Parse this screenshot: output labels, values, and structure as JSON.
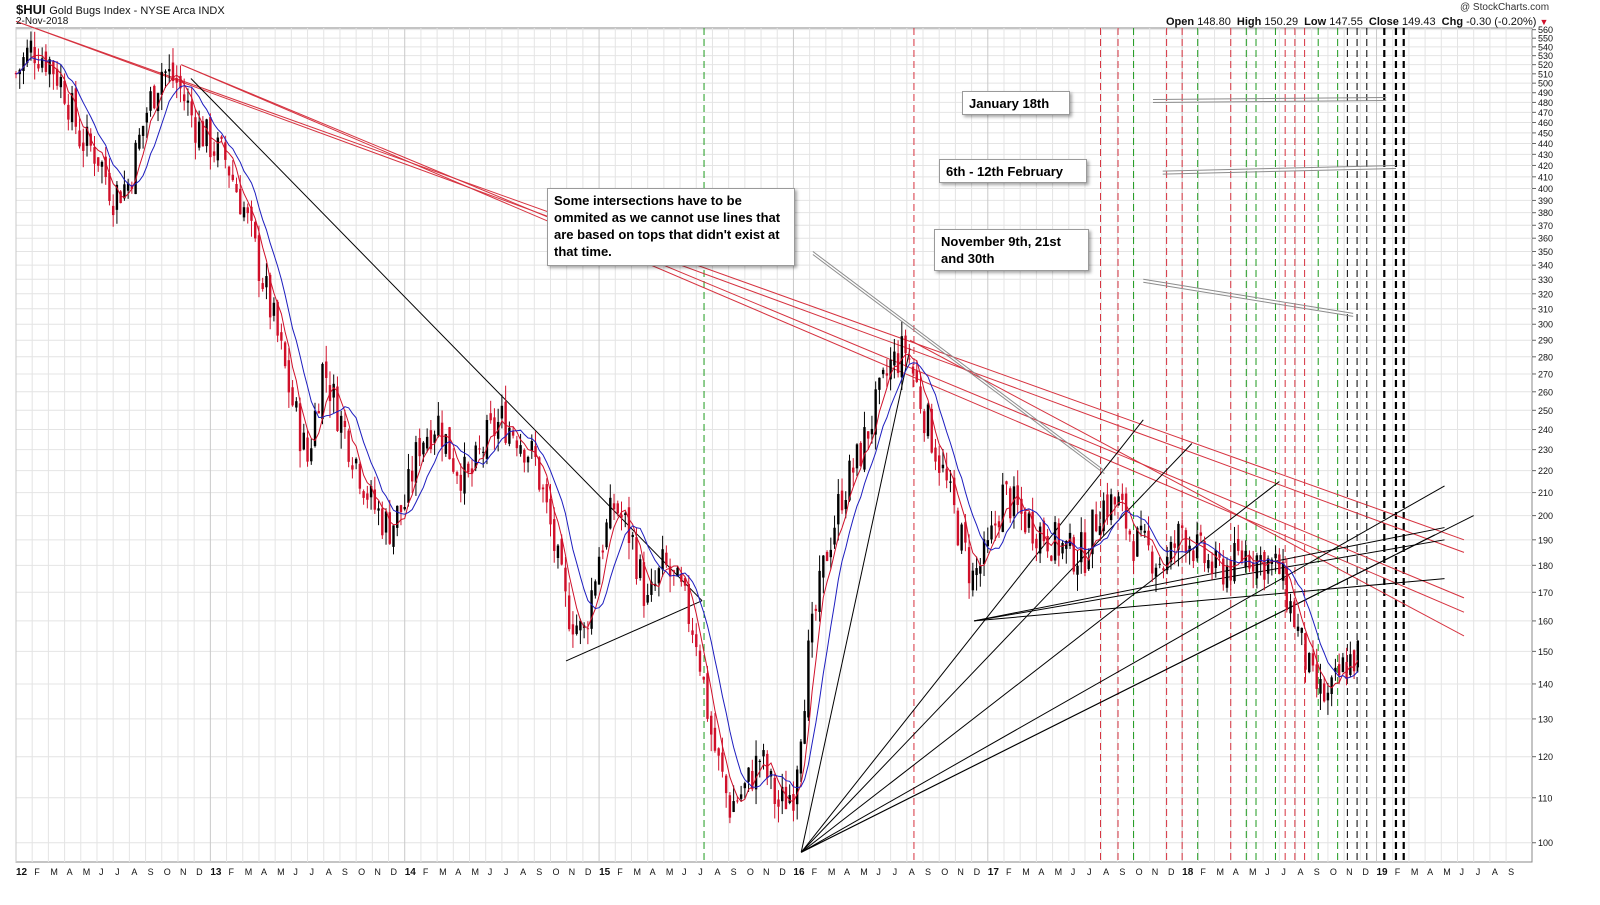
{
  "header": {
    "symbol": "$HUI",
    "description": "Gold Bugs Index - NYSE Arca  INDX",
    "date": "2-Nov-2018",
    "open_label": "Open",
    "open": "148.80",
    "high_label": "High",
    "high": "150.29",
    "low_label": "Low",
    "low": "147.55",
    "close_label": "Close",
    "close": "149.43",
    "chg_label": "Chg",
    "chg": "-0.30 (-0.20%)",
    "chg_marker": "▼",
    "watermark": "@ StockCharts.com"
  },
  "annotations": {
    "note_intersections": "Some intersections have to be ommited as we cannot use lines that are based on tops that didn't exist at that time.",
    "jan18": "January 18th",
    "feb": "6th - 12th February",
    "nov": "November 9th, 21st and 30th"
  },
  "colors": {
    "up_candle": "#000000",
    "down_candle": "#d0102a",
    "ma_fast": "#d0102a",
    "ma_slow": "#1d1dbf",
    "red_trend": "#d6323f",
    "black_trend": "#000000",
    "grid": "#e4e4e4",
    "green_vline": "#1e9a1e",
    "red_vline": "#d6323f"
  },
  "chart_data": {
    "type": "line",
    "subtype": "candlestick with moving averages and trendlines",
    "title": "$HUI Gold Bugs Index - NYSE Arca INDX",
    "scale": "log",
    "ylim": [
      96,
      562
    ],
    "xlim": [
      2012.0,
      2019.8
    ],
    "y_ticks": [
      560,
      550,
      540,
      530,
      520,
      510,
      500,
      490,
      480,
      470,
      460,
      450,
      440,
      430,
      420,
      410,
      400,
      390,
      380,
      370,
      360,
      350,
      340,
      330,
      320,
      310,
      300,
      290,
      280,
      270,
      260,
      250,
      240,
      230,
      220,
      210,
      200,
      190,
      180,
      170,
      160,
      150,
      140,
      130,
      120,
      110,
      100
    ],
    "x_tick_labels": [
      "12",
      "F",
      "M",
      "A",
      "M",
      "J",
      "J",
      "A",
      "S",
      "O",
      "N",
      "D",
      "13",
      "F",
      "M",
      "A",
      "M",
      "J",
      "J",
      "A",
      "S",
      "O",
      "N",
      "D",
      "14",
      "F",
      "M",
      "A",
      "M",
      "J",
      "J",
      "A",
      "S",
      "O",
      "N",
      "D",
      "15",
      "F",
      "M",
      "A",
      "M",
      "J",
      "J",
      "A",
      "S",
      "O",
      "N",
      "D",
      "16",
      "F",
      "M",
      "A",
      "M",
      "J",
      "J",
      "A",
      "S",
      "O",
      "N",
      "D",
      "17",
      "F",
      "M",
      "A",
      "M",
      "J",
      "J",
      "A",
      "S",
      "O",
      "N",
      "D",
      "18",
      "F",
      "M",
      "A",
      "M",
      "J",
      "J",
      "A",
      "S",
      "O",
      "N",
      "D",
      "19",
      "F",
      "M",
      "A",
      "M",
      "J",
      "J",
      "A",
      "S"
    ],
    "price_path": [
      [
        2012.0,
        510
      ],
      [
        2012.08,
        540
      ],
      [
        2012.17,
        525
      ],
      [
        2012.25,
        495
      ],
      [
        2012.33,
        445
      ],
      [
        2012.42,
        430
      ],
      [
        2012.5,
        395
      ],
      [
        2012.58,
        405
      ],
      [
        2012.67,
        470
      ],
      [
        2012.75,
        515
      ],
      [
        2012.83,
        500
      ],
      [
        2012.92,
        460
      ],
      [
        2013.0,
        440
      ],
      [
        2013.08,
        425
      ],
      [
        2013.17,
        385
      ],
      [
        2013.25,
        340
      ],
      [
        2013.33,
        300
      ],
      [
        2013.42,
        255
      ],
      [
        2013.5,
        225
      ],
      [
        2013.58,
        275
      ],
      [
        2013.67,
        245
      ],
      [
        2013.75,
        225
      ],
      [
        2013.83,
        205
      ],
      [
        2013.92,
        195
      ],
      [
        2014.0,
        205
      ],
      [
        2014.08,
        235
      ],
      [
        2014.17,
        245
      ],
      [
        2014.25,
        225
      ],
      [
        2014.33,
        215
      ],
      [
        2014.42,
        235
      ],
      [
        2014.5,
        245
      ],
      [
        2014.58,
        238
      ],
      [
        2014.67,
        225
      ],
      [
        2014.75,
        195
      ],
      [
        2014.83,
        165
      ],
      [
        2014.92,
        155
      ],
      [
        2015.0,
        185
      ],
      [
        2015.08,
        205
      ],
      [
        2015.17,
        190
      ],
      [
        2015.25,
        165
      ],
      [
        2015.33,
        180
      ],
      [
        2015.42,
        170
      ],
      [
        2015.5,
        155
      ],
      [
        2015.58,
        125
      ],
      [
        2015.67,
        108
      ],
      [
        2015.75,
        112
      ],
      [
        2015.83,
        120
      ],
      [
        2015.92,
        108
      ],
      [
        2016.0,
        112
      ],
      [
        2016.08,
        150
      ],
      [
        2016.17,
        185
      ],
      [
        2016.25,
        210
      ],
      [
        2016.33,
        225
      ],
      [
        2016.42,
        250
      ],
      [
        2016.5,
        275
      ],
      [
        2016.58,
        285
      ],
      [
        2016.67,
        250
      ],
      [
        2016.75,
        225
      ],
      [
        2016.83,
        200
      ],
      [
        2016.92,
        175
      ],
      [
        2017.0,
        185
      ],
      [
        2017.08,
        210
      ],
      [
        2017.17,
        200
      ],
      [
        2017.25,
        195
      ],
      [
        2017.33,
        190
      ],
      [
        2017.42,
        185
      ],
      [
        2017.5,
        185
      ],
      [
        2017.58,
        205
      ],
      [
        2017.67,
        205
      ],
      [
        2017.75,
        190
      ],
      [
        2017.83,
        185
      ],
      [
        2017.92,
        180
      ],
      [
        2018.0,
        195
      ],
      [
        2018.08,
        185
      ],
      [
        2018.17,
        178
      ],
      [
        2018.25,
        180
      ],
      [
        2018.33,
        185
      ],
      [
        2018.42,
        182
      ],
      [
        2018.5,
        178
      ],
      [
        2018.58,
        160
      ],
      [
        2018.67,
        140
      ],
      [
        2018.75,
        135
      ],
      [
        2018.83,
        145
      ],
      [
        2018.92,
        150
      ]
    ],
    "indicators": [
      {
        "name": "fast moving average",
        "color": "red"
      },
      {
        "name": "slow moving average",
        "color": "blue"
      }
    ],
    "red_trendlines": [
      {
        "from": [
          2012.0,
          570
        ],
        "to": [
          2019.45,
          190
        ]
      },
      {
        "from": [
          2012.0,
          570
        ],
        "to": [
          2019.45,
          185
        ]
      },
      {
        "from": [
          2012.85,
          520
        ],
        "to": [
          2019.45,
          168
        ]
      },
      {
        "from": [
          2012.85,
          520
        ],
        "to": [
          2019.45,
          163
        ]
      },
      {
        "from": [
          2016.6,
          290
        ],
        "to": [
          2019.45,
          155
        ]
      }
    ],
    "black_trendlines": [
      {
        "from": [
          2012.9,
          505
        ],
        "to": [
          2015.53,
          167
        ]
      },
      {
        "from": [
          2014.83,
          147
        ],
        "to": [
          2015.53,
          167
        ]
      },
      {
        "from": [
          2016.04,
          98
        ],
        "to": [
          2016.6,
          285
        ]
      },
      {
        "from": [
          2016.04,
          98
        ],
        "to": [
          2017.8,
          245
        ]
      },
      {
        "from": [
          2016.04,
          98
        ],
        "to": [
          2018.05,
          233
        ]
      },
      {
        "from": [
          2016.04,
          98
        ],
        "to": [
          2018.5,
          215
        ]
      },
      {
        "from": [
          2016.04,
          98
        ],
        "to": [
          2019.35,
          213
        ]
      },
      {
        "from": [
          2016.04,
          98
        ],
        "to": [
          2019.5,
          200
        ]
      },
      {
        "from": [
          2016.04,
          98
        ],
        "to": [
          2019.3,
          192
        ]
      },
      {
        "from": [
          2016.93,
          160
        ],
        "to": [
          2019.35,
          195
        ]
      },
      {
        "from": [
          2016.93,
          160
        ],
        "to": [
          2019.35,
          175
        ]
      },
      {
        "from": [
          2016.93,
          160
        ],
        "to": [
          2019.35,
          190
        ]
      }
    ],
    "callout_lines": [
      {
        "label": "January 18th",
        "from": [
          2017.85,
          483
        ],
        "to": [
          2019.05,
          485
        ]
      },
      {
        "label": "6th - 12th February",
        "from": [
          2017.9,
          415
        ],
        "to": [
          2019.1,
          420
        ]
      },
      {
        "label": "November 9th, 21st and 30th",
        "from": [
          2017.8,
          330
        ],
        "to": [
          2018.88,
          307
        ]
      },
      {
        "label": "Some intersections",
        "from": [
          2016.1,
          350
        ],
        "to": [
          2017.6,
          220
        ]
      }
    ],
    "vertical_lines": [
      {
        "x": 2015.54,
        "color": "green"
      },
      {
        "x": 2016.62,
        "color": "red"
      },
      {
        "x": 2017.58,
        "color": "red"
      },
      {
        "x": 2017.67,
        "color": "red"
      },
      {
        "x": 2017.75,
        "color": "green"
      },
      {
        "x": 2017.92,
        "color": "red"
      },
      {
        "x": 2018.0,
        "color": "red"
      },
      {
        "x": 2018.08,
        "color": "green"
      },
      {
        "x": 2018.25,
        "color": "red"
      },
      {
        "x": 2018.33,
        "color": "green"
      },
      {
        "x": 2018.38,
        "color": "green"
      },
      {
        "x": 2018.48,
        "color": "green"
      },
      {
        "x": 2018.53,
        "color": "red"
      },
      {
        "x": 2018.58,
        "color": "red"
      },
      {
        "x": 2018.63,
        "color": "red"
      },
      {
        "x": 2018.7,
        "color": "green"
      },
      {
        "x": 2018.8,
        "color": "green"
      },
      {
        "x": 2018.85,
        "color": "black"
      },
      {
        "x": 2018.9,
        "color": "black"
      },
      {
        "x": 2018.95,
        "color": "black"
      }
    ],
    "thick_vertical_lines": [
      2019.04,
      2019.1,
      2019.14
    ]
  }
}
